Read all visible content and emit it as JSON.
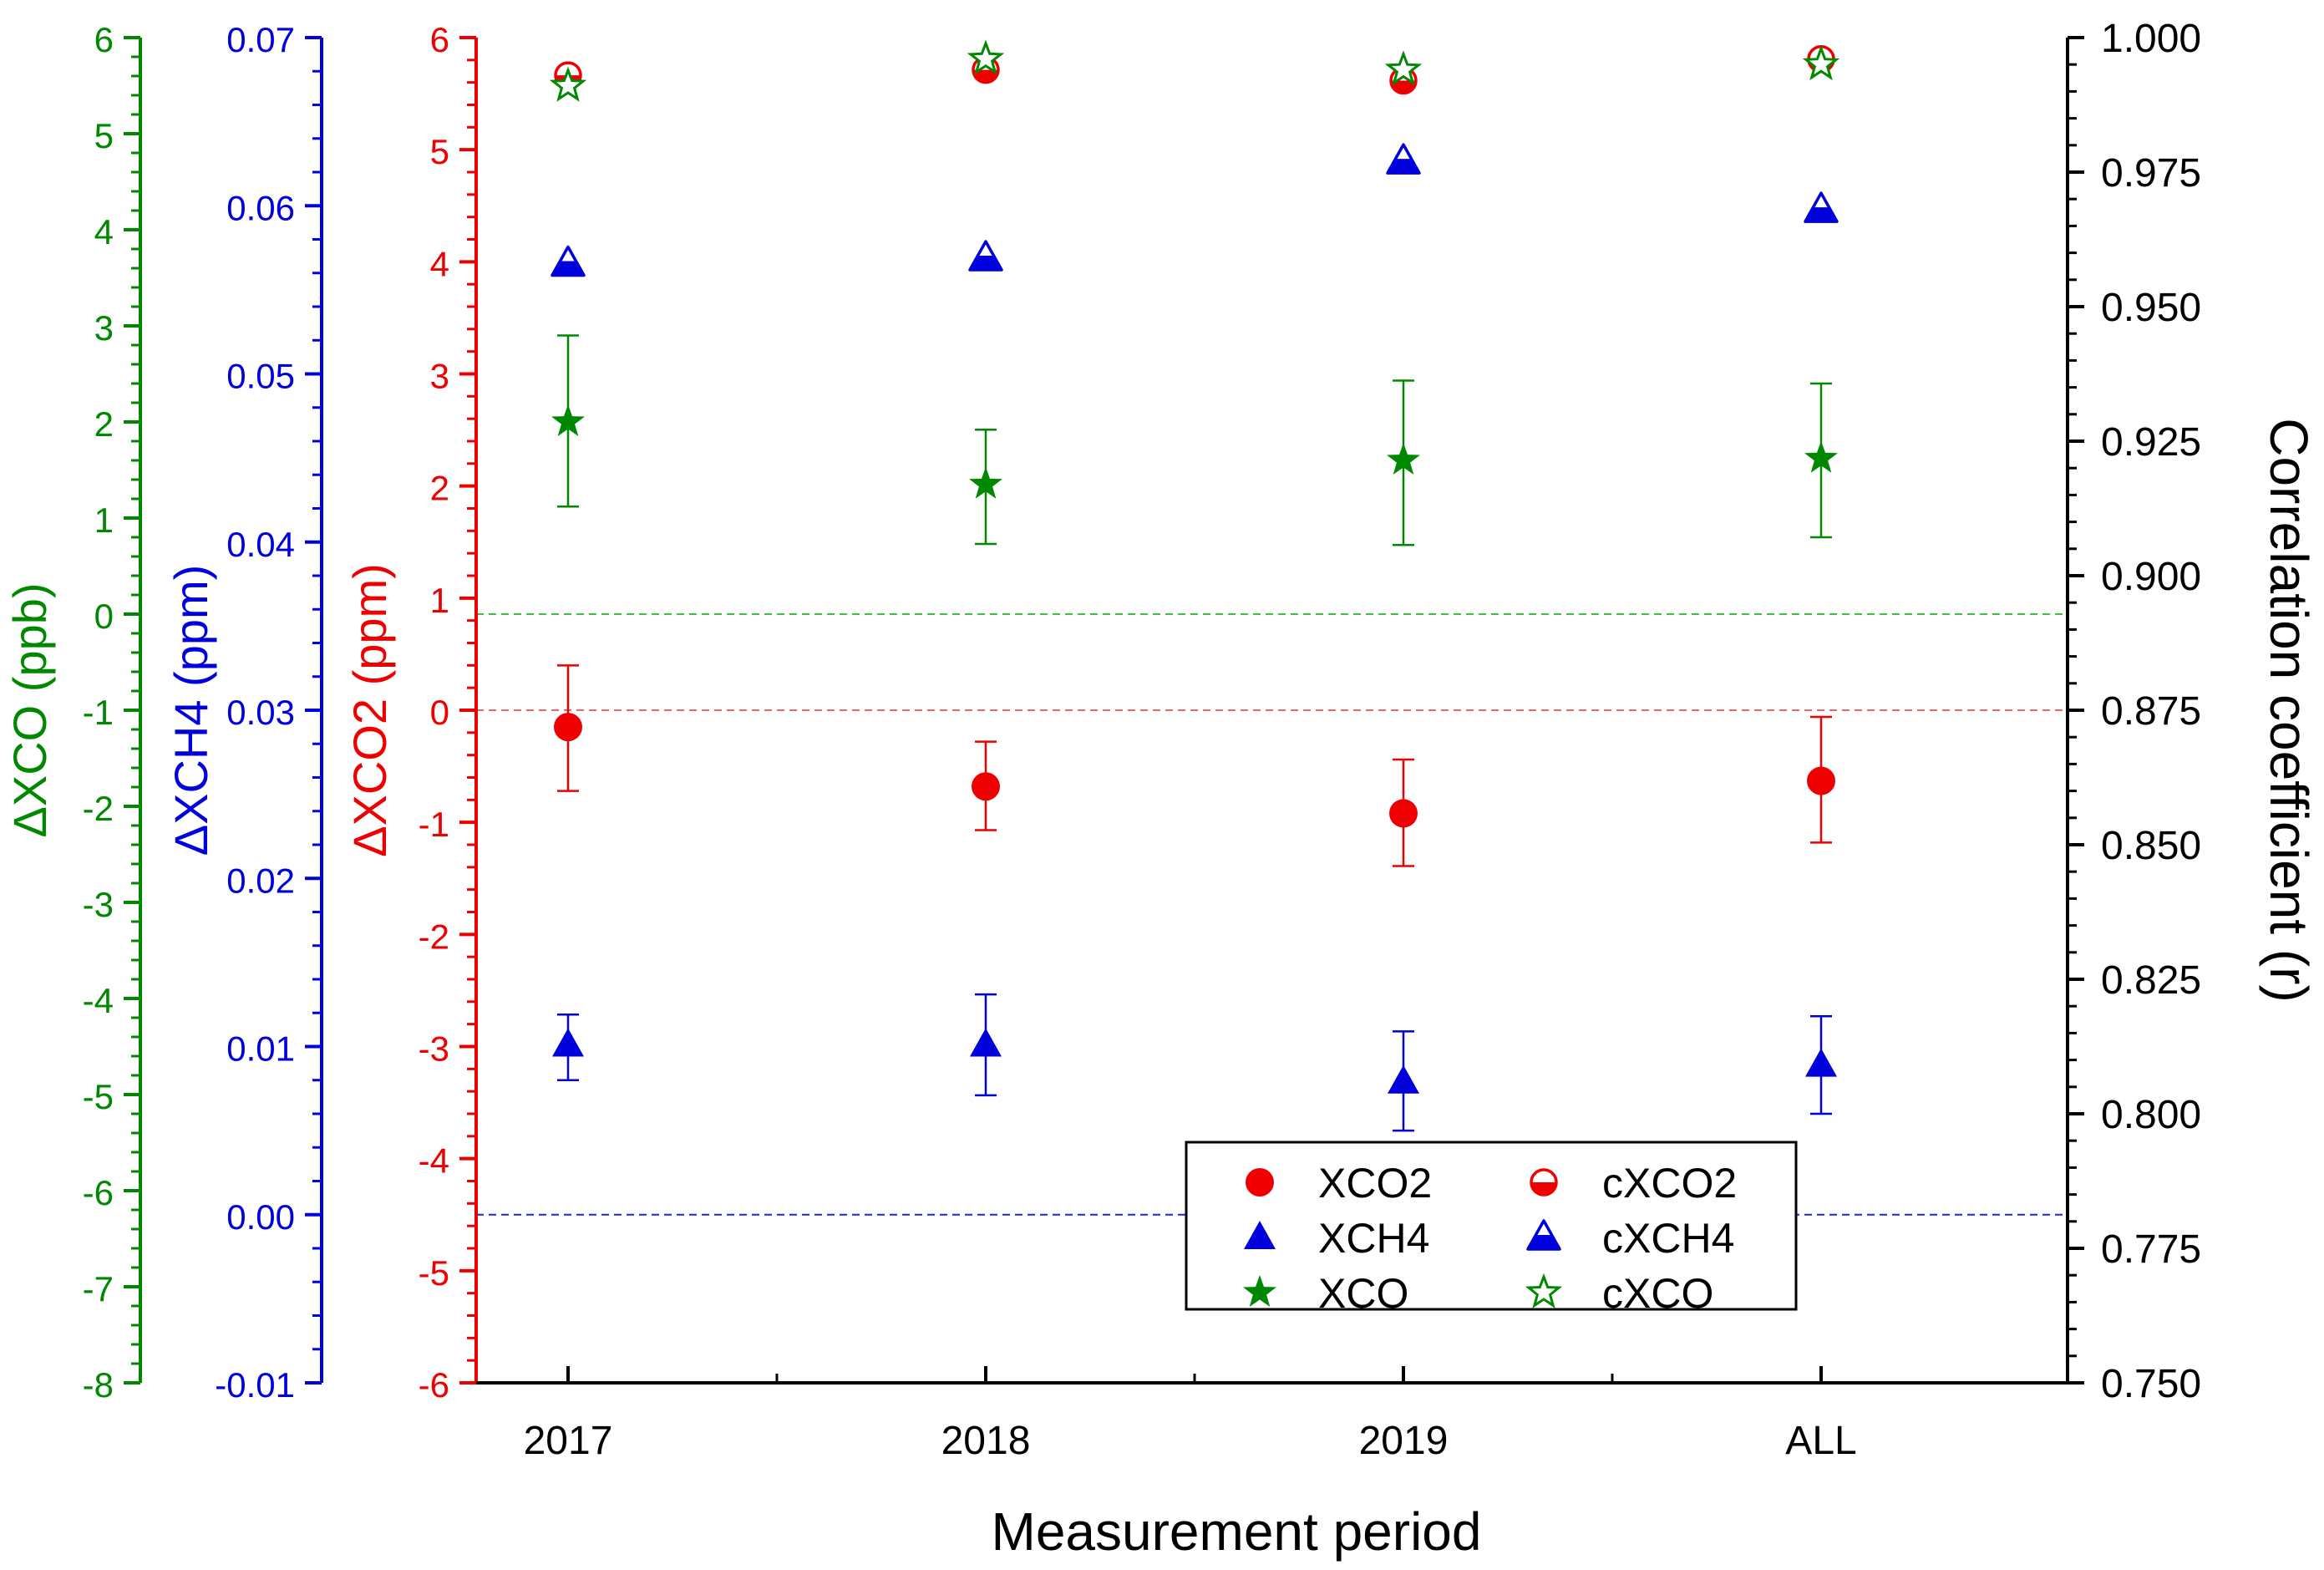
{
  "chart_data": {
    "type": "scatter",
    "title": "",
    "xlabel": "Measurement period",
    "categories": [
      "2017",
      "2018",
      "2019",
      "ALL"
    ],
    "axes": {
      "xco": {
        "label": "ΔXCO (ppb)",
        "color": "#008800",
        "ylim": [
          -8,
          6
        ],
        "ticks": [
          "6",
          "5",
          "4",
          "3",
          "2",
          "1",
          "0",
          "-1",
          "-2",
          "-3",
          "-4",
          "-5",
          "-6",
          "-7",
          "-8"
        ],
        "tick_values": [
          6,
          5,
          4,
          3,
          2,
          1,
          0,
          -1,
          -2,
          -3,
          -4,
          -5,
          -6,
          -7,
          -8
        ]
      },
      "xch4": {
        "label": "ΔXCH4 (ppm)",
        "color": "#0000dd",
        "ylim": [
          -0.01,
          0.07
        ],
        "ticks": [
          "0.07",
          "0.06",
          "0.05",
          "0.04",
          "0.03",
          "0.02",
          "0.01",
          "0.00",
          "-0.01"
        ],
        "tick_values": [
          0.07,
          0.06,
          0.05,
          0.04,
          0.03,
          0.02,
          0.01,
          0.0,
          -0.01
        ]
      },
      "xco2": {
        "label": "ΔXCO2 (ppm)",
        "color": "#ee0000",
        "ylim": [
          -6,
          6
        ],
        "ticks": [
          "6",
          "5",
          "4",
          "3",
          "2",
          "1",
          "0",
          "-1",
          "-2",
          "-3",
          "-4",
          "-5",
          "-6"
        ],
        "tick_values": [
          6,
          5,
          4,
          3,
          2,
          1,
          0,
          -1,
          -2,
          -3,
          -4,
          -5,
          -6
        ]
      },
      "corr": {
        "label": "Correlation coefficient (r)",
        "color": "#000000",
        "ylim": [
          0.75,
          1.0
        ],
        "ticks": [
          "1.000",
          "0.975",
          "0.950",
          "0.925",
          "0.900",
          "0.875",
          "0.850",
          "0.825",
          "0.800",
          "0.775",
          "0.750"
        ],
        "tick_values": [
          1.0,
          0.975,
          0.95,
          0.925,
          0.9,
          0.875,
          0.85,
          0.825,
          0.8,
          0.775,
          0.75
        ]
      }
    },
    "series": [
      {
        "name": "XCO2",
        "axis": "xco2",
        "marker": "circle-filled",
        "color": "#ee0000",
        "values": [
          -0.15,
          -0.68,
          -0.92,
          -0.63
        ],
        "err_low": [
          0.57,
          0.39,
          0.47,
          0.55
        ],
        "err_high": [
          0.55,
          0.4,
          0.48,
          0.57
        ]
      },
      {
        "name": "XCH4",
        "axis": "xch4",
        "marker": "triangle-filled",
        "color": "#0000dd",
        "values": [
          0.0101,
          0.0101,
          0.0079,
          0.0089
        ],
        "err_low": [
          0.0021,
          0.003,
          0.0029,
          0.0029
        ],
        "err_high": [
          0.0018,
          0.003,
          0.003,
          0.0029
        ]
      },
      {
        "name": "XCO",
        "axis": "xco",
        "marker": "star-filled",
        "color": "#008800",
        "values": [
          2.0,
          1.35,
          1.6,
          1.62
        ],
        "err_low": [
          0.88,
          0.62,
          0.88,
          0.82
        ],
        "err_high": [
          0.9,
          0.57,
          0.83,
          0.78
        ]
      },
      {
        "name": "cXCO2",
        "axis": "corr",
        "marker": "circle-half",
        "color": "#ee0000",
        "values": [
          0.993,
          0.994,
          0.992,
          0.996
        ]
      },
      {
        "name": "cXCH4",
        "axis": "corr",
        "marker": "triangle-half",
        "color": "#0000dd",
        "values": [
          0.958,
          0.959,
          0.977,
          0.968
        ]
      },
      {
        "name": "cXCO",
        "axis": "corr",
        "marker": "star-open",
        "color": "#008800",
        "values": [
          0.991,
          0.996,
          0.994,
          0.995
        ]
      }
    ],
    "reference_lines": [
      {
        "axis": "xco",
        "value": 0,
        "color": "#44bb44"
      },
      {
        "axis": "xco2",
        "value": 0,
        "color": "#ee6666"
      },
      {
        "axis": "xch4",
        "value": 0,
        "color": "#2222dd"
      }
    ],
    "legend": {
      "position": "bottom-right",
      "columns": 2,
      "entries": [
        "XCO2",
        "cXCO2",
        "XCH4",
        "cXCH4",
        "XCO",
        "cXCO"
      ]
    }
  }
}
